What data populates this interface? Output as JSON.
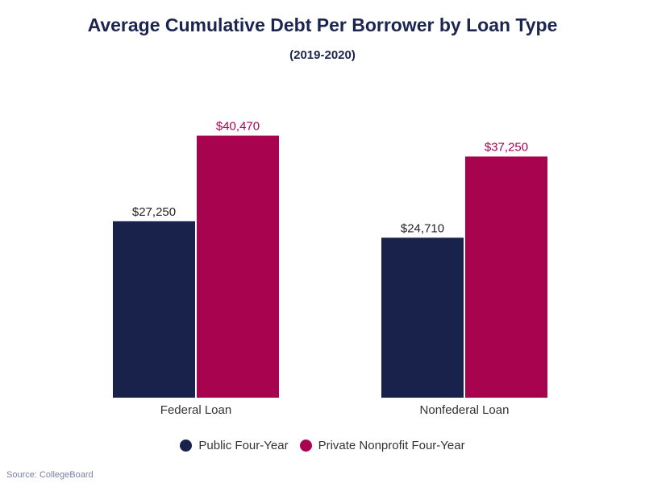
{
  "chart_data": {
    "type": "bar",
    "title": "Average Cumulative Debt Per Borrower by Loan Type",
    "subtitle": "(2019-2020)",
    "categories": [
      "Federal Loan",
      "Nonfederal Loan"
    ],
    "series": [
      {
        "name": "Public Four-Year",
        "color": "#19224a",
        "values": [
          27250,
          24710
        ],
        "labels": [
          "$27,250",
          "$24,710"
        ]
      },
      {
        "name": "Private Nonprofit Four-Year",
        "color": "#a8034f",
        "values": [
          40470,
          37250
        ],
        "labels": [
          "$40,470",
          "$37,250"
        ]
      }
    ],
    "ylim": [
      0,
      47500
    ],
    "grid": false,
    "legend_position": "bottom",
    "xlabel": "",
    "ylabel": ""
  },
  "source": "Source: CollegeBoard"
}
